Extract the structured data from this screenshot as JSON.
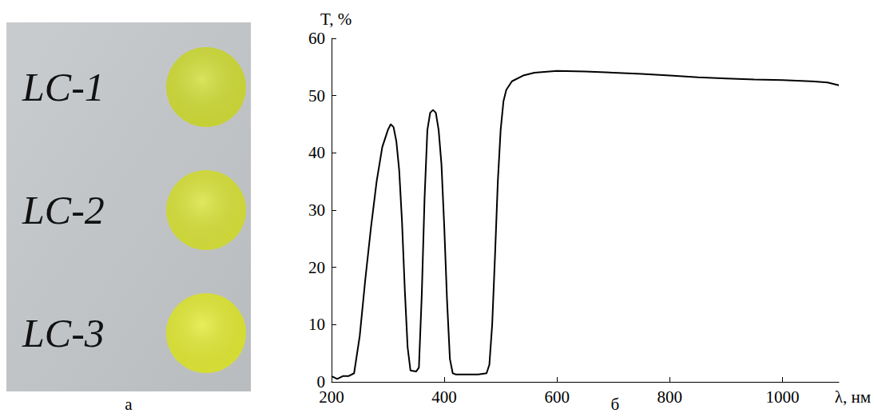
{
  "panel_a": {
    "label": "а",
    "samples": [
      {
        "name": "LC-1",
        "color": "#d2de3a"
      },
      {
        "name": "LC-2",
        "color": "#d9e33c"
      },
      {
        "name": "LC-3",
        "color": "#e2ea38"
      }
    ]
  },
  "chart_data": {
    "type": "line",
    "label": "б",
    "x_label": "λ, нм",
    "y_label": "T, %",
    "x": [
      200,
      210,
      220,
      230,
      240,
      250,
      260,
      270,
      280,
      290,
      300,
      305,
      310,
      315,
      320,
      325,
      330,
      335,
      340,
      350,
      355,
      360,
      365,
      370,
      375,
      380,
      385,
      390,
      395,
      400,
      405,
      410,
      415,
      420,
      440,
      460,
      475,
      480,
      485,
      490,
      495,
      500,
      505,
      510,
      520,
      540,
      560,
      600,
      650,
      700,
      750,
      800,
      850,
      900,
      950,
      1000,
      1050,
      1080,
      1100
    ],
    "values": [
      1,
      0.5,
      1,
      1,
      1.5,
      8,
      18,
      27,
      35,
      41,
      44,
      45,
      44.5,
      42,
      37,
      28,
      16,
      6,
      2,
      1.8,
      2.5,
      15,
      32,
      44,
      47,
      47.5,
      47,
      44,
      38,
      27,
      14,
      4,
      1.5,
      1.3,
      1.3,
      1.3,
      1.5,
      3,
      10,
      22,
      35,
      44,
      49,
      51,
      52.5,
      53.5,
      54,
      54.3,
      54.2,
      54,
      53.8,
      53.5,
      53.2,
      53,
      52.8,
      52.7,
      52.5,
      52.3,
      51.8
    ],
    "color": "#000000",
    "xlim": [
      200,
      1100
    ],
    "xticks": [
      200,
      400,
      600,
      800,
      1000
    ],
    "ylim": [
      0,
      60
    ],
    "yticks": [
      0,
      10,
      20,
      30,
      40,
      50,
      60
    ],
    "grid": false
  }
}
